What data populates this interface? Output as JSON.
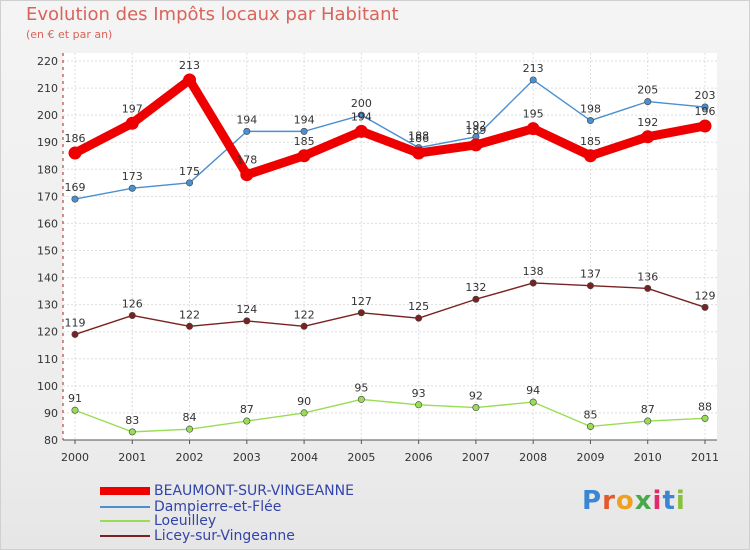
{
  "title": "Evolution des Impôts locaux par Habitant",
  "subtitle": "(en € et par an)",
  "logo": "Proxiti",
  "chart_data": {
    "type": "line",
    "title": "Evolution des Impôts locaux par Habitant",
    "subtitle": "(en € et par an)",
    "x": [
      2000,
      2001,
      2002,
      2003,
      2004,
      2005,
      2006,
      2007,
      2008,
      2009,
      2010,
      2011
    ],
    "ylim": [
      80,
      220
    ],
    "y_axis_break": true,
    "y_ticks": [
      80,
      90,
      100,
      110,
      120,
      130,
      140,
      150,
      160,
      170,
      180,
      190,
      200,
      210,
      220
    ],
    "grid": true,
    "legend_position": "bottom-left",
    "series": [
      {
        "name": "BEAUMONT-SUR-VINGEANNE",
        "color": "#ee0000",
        "values": [
          186,
          197,
          213,
          178,
          185,
          194,
          186,
          189,
          195,
          185,
          192,
          196
        ]
      },
      {
        "name": "Dampierre-et-Flée",
        "color": "#4a8fd0",
        "values": [
          169,
          173,
          175,
          194,
          194,
          200,
          188,
          192,
          213,
          198,
          205,
          203
        ]
      },
      {
        "name": "Loeuilley",
        "color": "#99dd55",
        "values": [
          91,
          83,
          84,
          87,
          90,
          95,
          93,
          92,
          94,
          85,
          87,
          88
        ]
      },
      {
        "name": "Licey-sur-Vingeanne",
        "color": "#7a2222",
        "values": [
          119,
          126,
          122,
          124,
          122,
          127,
          125,
          132,
          138,
          137,
          136,
          129
        ]
      }
    ]
  }
}
